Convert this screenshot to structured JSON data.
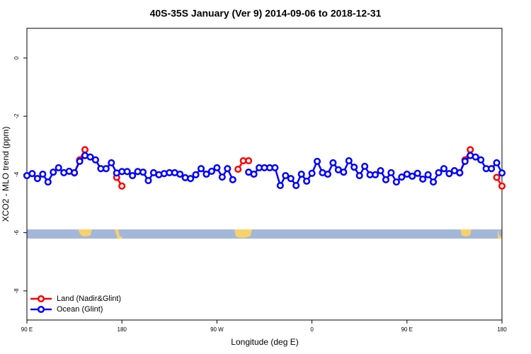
{
  "chart_data": {
    "type": "line",
    "title": "40S-35S January (Ver 9)   2014-09-06 to 2018-12-31",
    "x_label": "Longitude (deg E)",
    "y_label": "XCO2 - MLO trend (ppm)",
    "xlim": [
      90,
      540
    ],
    "ylim": [
      -9,
      1.02
    ],
    "xticks": [
      {
        "value": 90,
        "label": "90 E"
      },
      180,
      {
        "value": 270,
        "label": "90 W"
      },
      {
        "value": 360,
        "label": "0"
      },
      {
        "value": 450,
        "label": "90 E"
      },
      {
        "value": 540,
        "label": "180"
      }
    ],
    "yticks": [
      0,
      -2,
      -4,
      -6,
      -8
    ],
    "legend": "bottom-left",
    "x": [
      90,
      95,
      100,
      105,
      110,
      115,
      120,
      125,
      130,
      135,
      140,
      145,
      150,
      155,
      160,
      165,
      170,
      175,
      180,
      185,
      190,
      195,
      200,
      205,
      210,
      215,
      220,
      225,
      230,
      235,
      240,
      245,
      250,
      255,
      260,
      265,
      270,
      275,
      280,
      285,
      290,
      295,
      300,
      305,
      310,
      315,
      320,
      325,
      330,
      335,
      340,
      345,
      350,
      355,
      360,
      365,
      370,
      375,
      380,
      385,
      390,
      395,
      400,
      405,
      410,
      415,
      420,
      425,
      430,
      435,
      440,
      445,
      450,
      455,
      460,
      465,
      470,
      475,
      480,
      485,
      490,
      495,
      500,
      505,
      510,
      515,
      520,
      525,
      530,
      535,
      540
    ],
    "series": [
      {
        "name": "Land (Nadir&Glint)",
        "color": "#ff0000",
        "values": [
          null,
          null,
          null,
          null,
          null,
          null,
          null,
          null,
          null,
          -3.95,
          -3.5,
          -3.15,
          null,
          null,
          null,
          null,
          null,
          -4.1,
          -4.4,
          null,
          null,
          null,
          null,
          null,
          null,
          null,
          null,
          null,
          null,
          null,
          null,
          null,
          null,
          null,
          null,
          null,
          null,
          null,
          null,
          null,
          -3.82,
          -3.53,
          -3.53,
          null,
          null,
          null,
          null,
          null,
          null,
          null,
          null,
          null,
          null,
          null,
          null,
          null,
          null,
          null,
          null,
          null,
          null,
          null,
          null,
          null,
          null,
          null,
          null,
          null,
          null,
          null,
          null,
          null,
          null,
          null,
          null,
          null,
          null,
          null,
          null,
          null,
          null,
          null,
          -3.95,
          -3.5,
          -3.15,
          null,
          null,
          null,
          null,
          -4.1,
          -4.4
        ]
      },
      {
        "name": "Ocean (Glint)",
        "color": "#0000ff",
        "values": [
          -4.04,
          -3.97,
          -4.14,
          -3.99,
          -4.26,
          -3.92,
          -3.77,
          -3.94,
          -3.89,
          -3.94,
          -3.55,
          -3.35,
          -3.4,
          -3.5,
          -3.8,
          -3.8,
          -3.6,
          -3.95,
          -3.9,
          -3.9,
          -4.04,
          -3.9,
          -3.92,
          -4.21,
          -3.94,
          -4.01,
          -3.97,
          -3.94,
          -3.94,
          -3.99,
          -4.11,
          -4.14,
          -4.01,
          -3.8,
          -3.99,
          -3.89,
          -3.77,
          -4.09,
          -3.8,
          -4.18,
          null,
          null,
          -3.92,
          -3.99,
          -3.77,
          -3.77,
          -3.77,
          -3.77,
          -4.38,
          -4.04,
          -4.14,
          -4.38,
          -3.99,
          -4.23,
          -3.96,
          -3.55,
          -3.94,
          -3.99,
          -3.6,
          -3.84,
          -3.92,
          -3.53,
          -3.75,
          -4.04,
          -3.72,
          -4.01,
          -4.01,
          -3.87,
          -4.18,
          -3.94,
          -4.26,
          -4.09,
          -3.99,
          -4.06,
          -3.96,
          -4.16,
          -4.01,
          -4.26,
          -3.94,
          -3.8,
          -3.97,
          -3.87,
          -3.94,
          -3.55,
          -3.35,
          -3.4,
          -3.5,
          -3.8,
          -3.8,
          -3.6,
          -3.95
        ]
      }
    ]
  }
}
